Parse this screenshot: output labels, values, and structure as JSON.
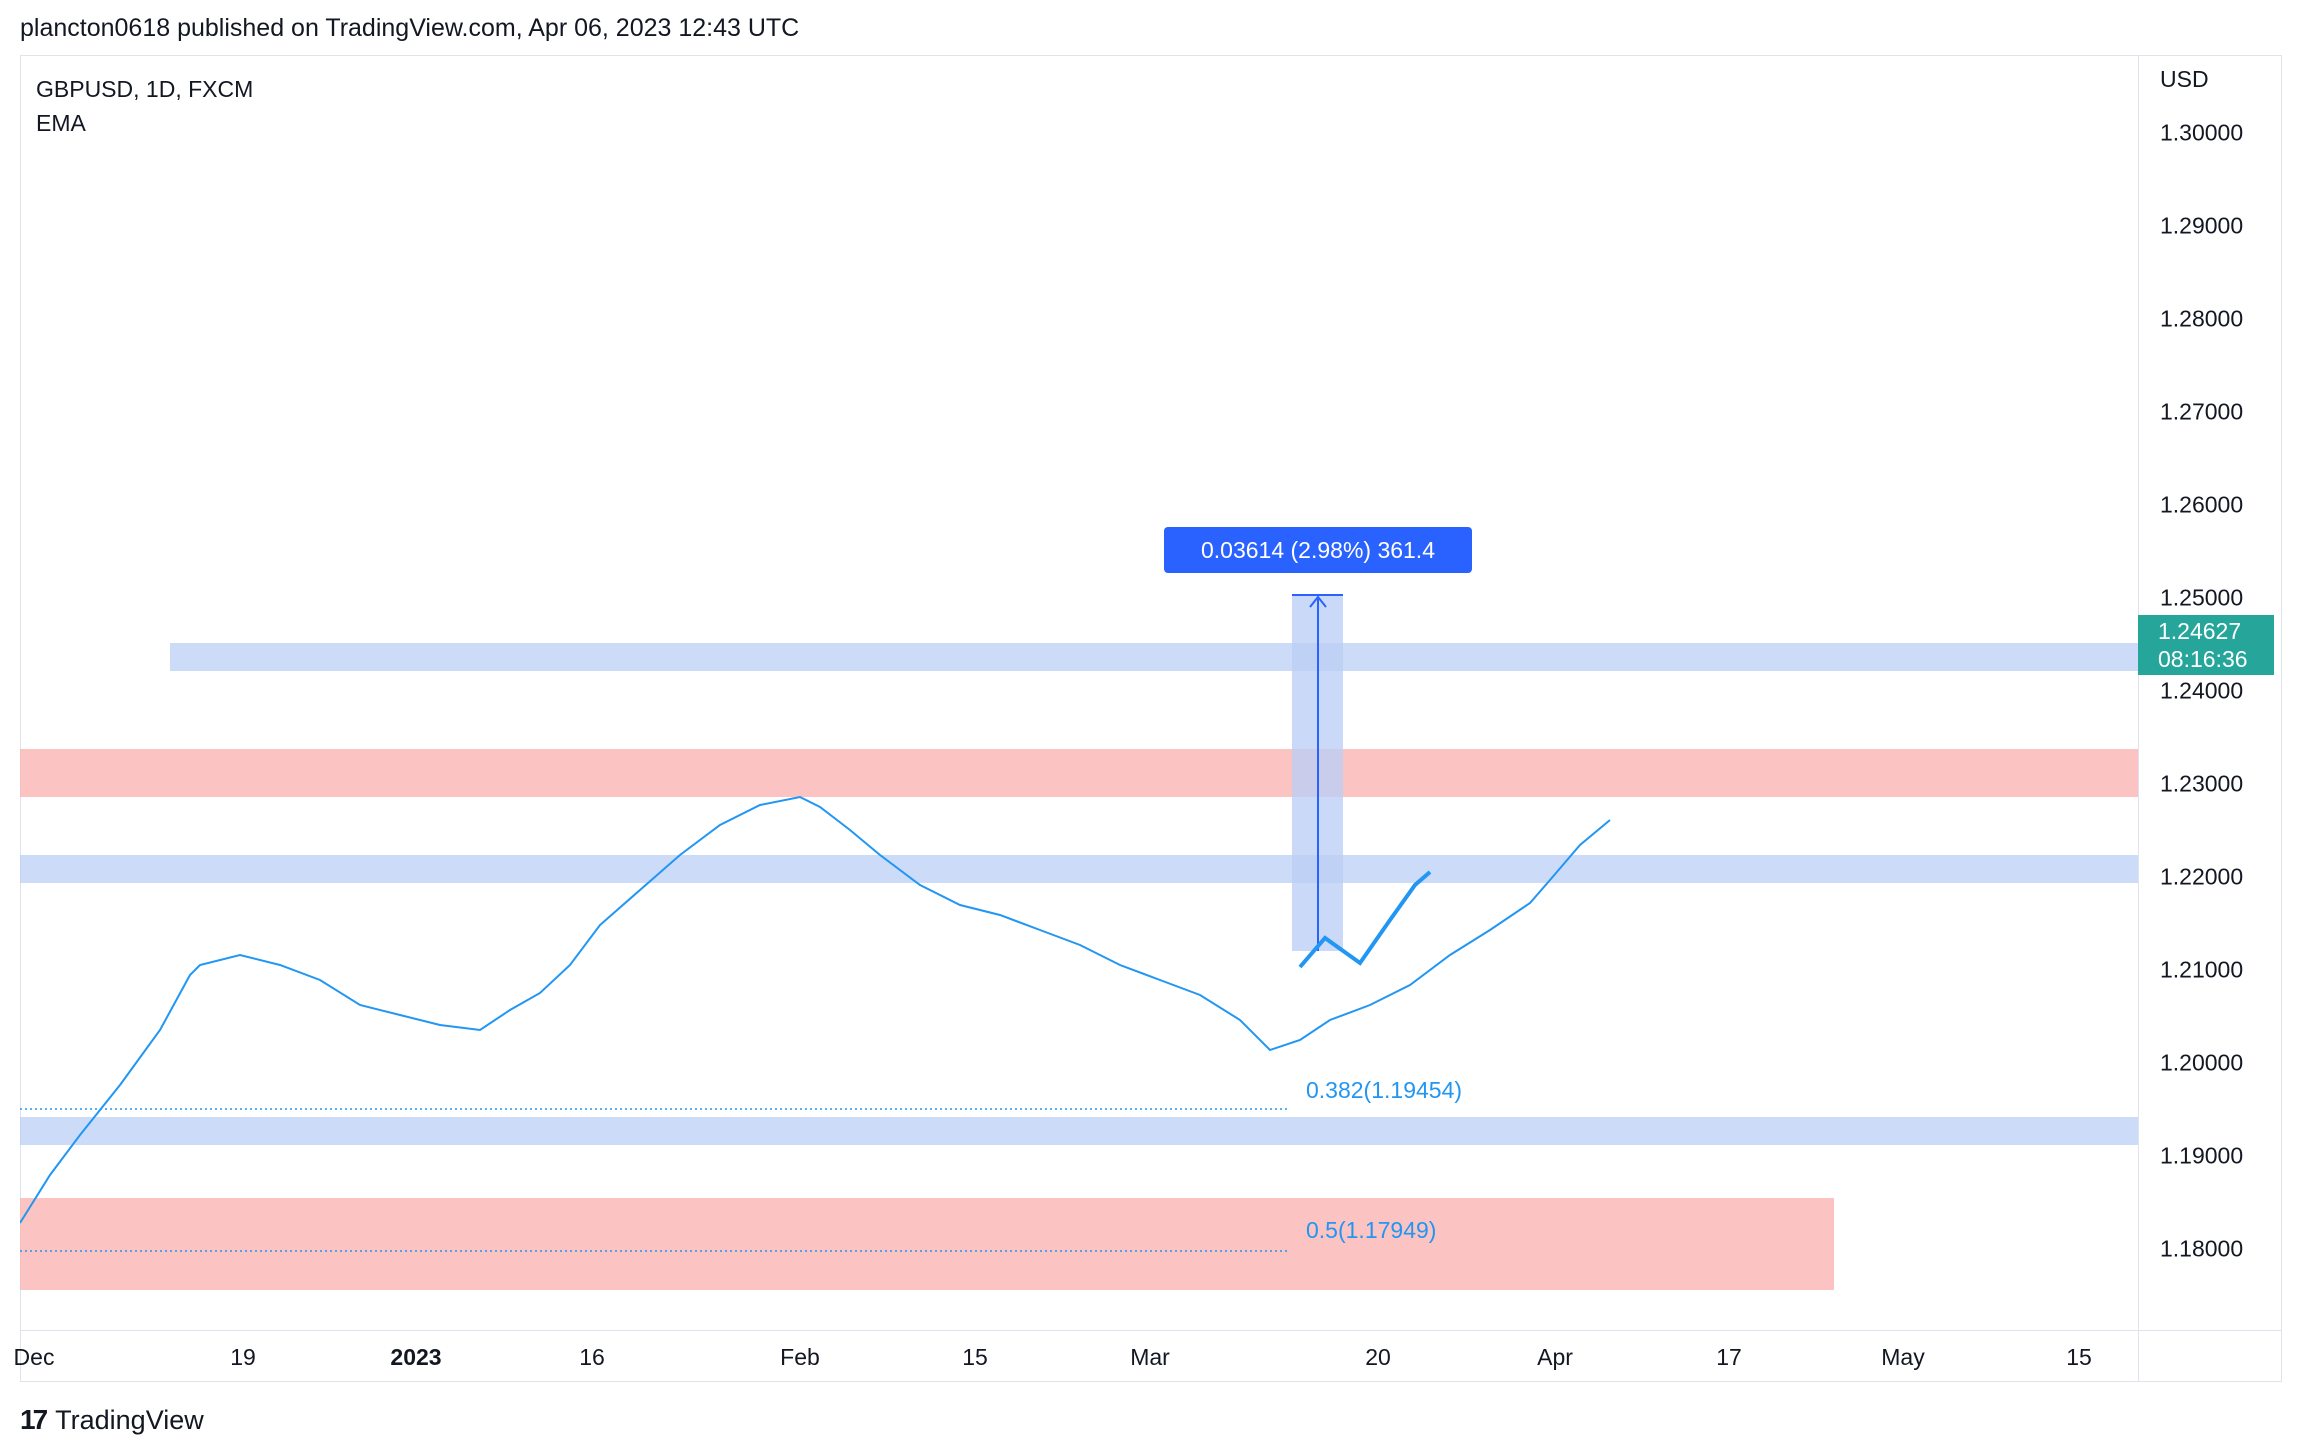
{
  "header": {
    "publisher": "plancton0618 published on TradingView.com, Apr 06, 2023 12:43 UTC"
  },
  "symbol": {
    "line1": "GBPUSD, 1D, FXCM",
    "line2": "EMA"
  },
  "currency": "USD",
  "price_ticks": [
    "1.30000",
    "1.29000",
    "1.28000",
    "1.27000",
    "1.26000",
    "1.25000",
    "1.24000",
    "1.23000",
    "1.22000",
    "1.21000",
    "1.20000",
    "1.19000",
    "1.18000"
  ],
  "price_tag": {
    "price": "1.24627",
    "countdown": "08:16:36"
  },
  "measure_label": "0.03614 (2.98%) 361.4",
  "fib": {
    "l382": "0.382(1.19454)",
    "l50": "0.5(1.17949)"
  },
  "x_ticks": [
    "Dec",
    "19",
    "2023",
    "16",
    "Feb",
    "15",
    "Mar",
    "20",
    "Apr",
    "17",
    "May",
    "15"
  ],
  "footer": {
    "brand": "TradingView"
  },
  "colors": {
    "up": "#26a69a",
    "down": "#ef5350",
    "ema": "#2196f3",
    "zone_blue": "#bbd0f5",
    "zone_red": "#fbb4b4"
  },
  "chart_data": {
    "type": "candlestick",
    "series": [
      {
        "name": "GBPUSD"
      }
    ],
    "indicator": "EMA",
    "ylim": [
      1.175,
      1.305
    ],
    "last_price": 1.24627
  }
}
